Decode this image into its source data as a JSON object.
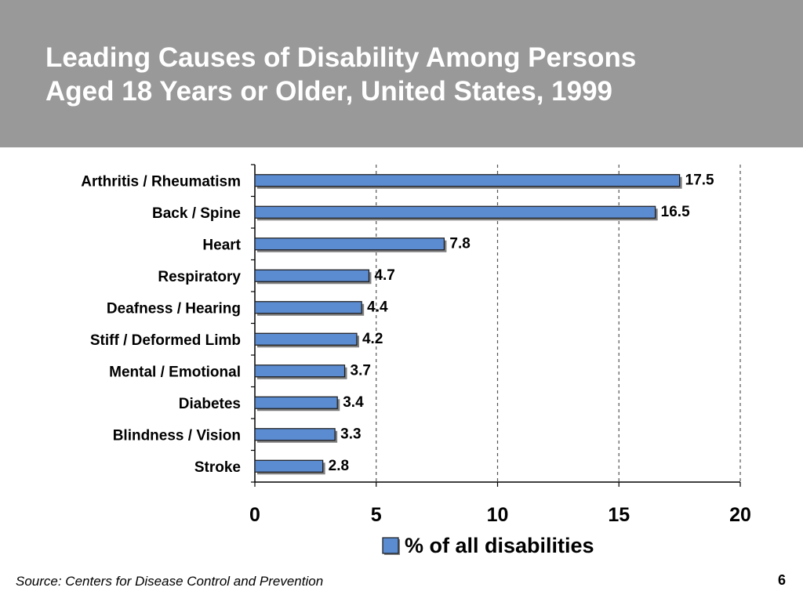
{
  "slide": {
    "title_line1": "Leading Causes of Disability Among Persons",
    "title_line2": "Aged 18 Years or Older, United States, 1999",
    "source": "Source: Centers for Disease Control and Prevention",
    "page_number": "6"
  },
  "colors": {
    "title_band": "#999999",
    "bar_fill": "#5b8bd0",
    "bar_shadow": "#7f7f7f"
  },
  "chart_data": {
    "type": "bar",
    "orientation": "horizontal",
    "title": "",
    "xlabel": "",
    "ylabel": "",
    "categories": [
      "Arthritis / Rheumatism",
      "Back / Spine",
      "Heart",
      "Respiratory",
      "Deafness / Hearing",
      "Stiff / Deformed Limb",
      "Mental / Emotional",
      "Diabetes",
      "Blindness / Vision",
      "Stroke"
    ],
    "series": [
      {
        "name": "% of all disabilities",
        "values": [
          17.5,
          16.5,
          7.8,
          4.7,
          4.4,
          4.2,
          3.7,
          3.4,
          3.3,
          2.8
        ]
      }
    ],
    "value_labels": [
      "17.5",
      "16.5",
      "7.8",
      "4.7",
      "4.4",
      "4.2",
      "3.7",
      "3.4",
      "3.3",
      "2.8"
    ],
    "xlim": [
      0,
      20
    ],
    "xticks": [
      0,
      5,
      10,
      15,
      20
    ],
    "xtick_labels": [
      "0",
      "5",
      "10",
      "15",
      "20"
    ],
    "grid": "vertical dashed",
    "legend_position": "bottom"
  }
}
